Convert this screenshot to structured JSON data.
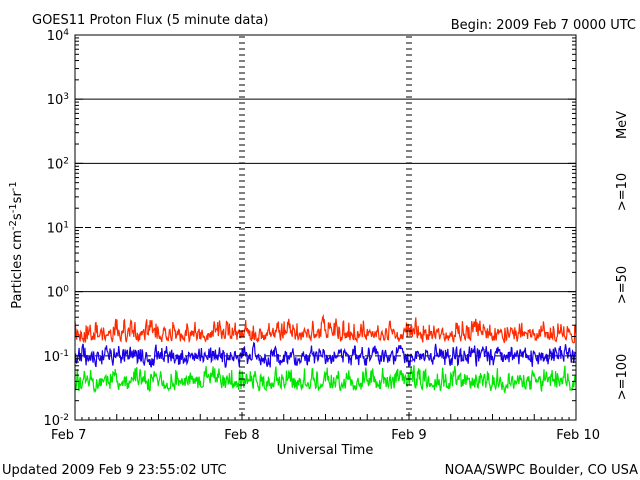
{
  "header": {
    "title": "GOES11 Proton Flux (5 minute data)",
    "begin": "Begin: 2009 Feb 7 0000 UTC"
  },
  "footer": {
    "updated": "Updated 2009 Feb  9 23:55:02 UTC",
    "credit": "NOAA/SWPC Boulder, CO USA"
  },
  "chart_data": {
    "type": "line",
    "title": "GOES11 Proton Flux (5 minute data)",
    "xlabel": "Universal Time",
    "ylabel": "Particles cm-2s-1sr-1",
    "y_scale": "log",
    "ylim": [
      0.01,
      10000
    ],
    "y_ticks": [
      {
        "base": "10",
        "exp": "-2",
        "value": 0.01
      },
      {
        "base": "10",
        "exp": "-1",
        "value": 0.1
      },
      {
        "base": "10",
        "exp": "0",
        "value": 1
      },
      {
        "base": "10",
        "exp": "1",
        "value": 10
      },
      {
        "base": "10",
        "exp": "2",
        "value": 100
      },
      {
        "base": "10",
        "exp": "3",
        "value": 1000
      },
      {
        "base": "10",
        "exp": "4",
        "value": 10000
      }
    ],
    "x_ticks": [
      "Feb 7",
      "Feb 8",
      "Feb 9",
      "Feb 10"
    ],
    "xlim": [
      "2009-02-07",
      "2009-02-10"
    ],
    "legend_title": "MeV",
    "legend_placement": "right",
    "series": [
      {
        "name": ">=10",
        "color": "#ff2a00",
        "typical_range": [
          0.15,
          0.45
        ],
        "median": 0.22
      },
      {
        "name": ">=50",
        "color": "#1a00e6",
        "typical_range": [
          0.06,
          0.17
        ],
        "median": 0.1
      },
      {
        "name": ">=100",
        "color": "#00e600",
        "typical_range": [
          0.025,
          0.08
        ],
        "median": 0.04
      }
    ]
  }
}
